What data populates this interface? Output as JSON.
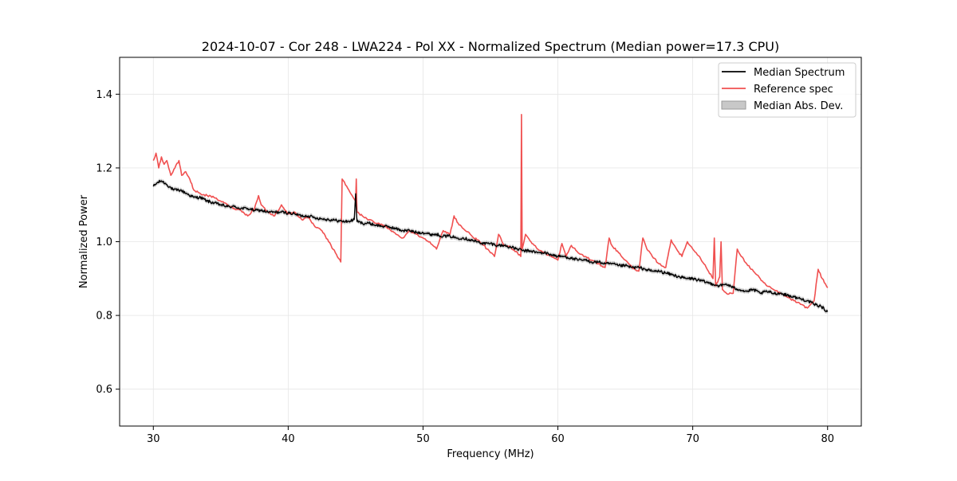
{
  "chart_data": {
    "type": "line",
    "title": "2024-10-07 - Cor 248 - LWA224 - Pol XX - Normalized Spectrum (Median power=17.3 CPU)",
    "xlabel": "Frequency (MHz)",
    "ylabel": "Normalized Power",
    "xlim": [
      27.5,
      82.5
    ],
    "ylim": [
      0.5,
      1.5
    ],
    "xticks": [
      30,
      40,
      50,
      60,
      70,
      80
    ],
    "xtick_labels": [
      "30",
      "40",
      "50",
      "60",
      "70",
      "80"
    ],
    "yticks": [
      0.6,
      0.8,
      1.0,
      1.2,
      1.4
    ],
    "ytick_labels": [
      "0.6",
      "0.8",
      "1.0",
      "1.2",
      "1.4"
    ],
    "grid": true,
    "legend_position": "top-right",
    "series": [
      {
        "name": "Median Spectrum",
        "color": "#000000",
        "x": [
          30.0,
          30.3,
          30.6,
          31.0,
          31.5,
          32.0,
          32.5,
          33.0,
          33.5,
          34.0,
          34.5,
          35.0,
          35.5,
          36.0,
          36.5,
          37.0,
          37.5,
          38.0,
          38.5,
          39.0,
          39.5,
          40.0,
          40.5,
          41.0,
          41.5,
          42.0,
          42.5,
          43.0,
          43.5,
          44.0,
          44.5,
          44.9,
          45.0,
          45.1,
          45.5,
          46.0,
          46.5,
          47.0,
          47.5,
          48.0,
          48.5,
          49.0,
          49.5,
          50.0,
          50.5,
          51.0,
          51.5,
          52.0,
          52.5,
          53.0,
          53.5,
          54.0,
          54.5,
          55.0,
          55.5,
          56.0,
          56.5,
          57.0,
          57.5,
          58.0,
          58.5,
          59.0,
          59.5,
          60.0,
          60.5,
          61.0,
          61.5,
          62.0,
          62.5,
          63.0,
          63.5,
          64.0,
          64.5,
          65.0,
          65.5,
          66.0,
          66.5,
          67.0,
          67.5,
          68.0,
          68.5,
          69.0,
          69.5,
          70.0,
          70.5,
          71.0,
          71.5,
          72.0,
          72.5,
          73.0,
          73.5,
          74.0,
          74.5,
          75.0,
          75.5,
          76.0,
          76.5,
          77.0,
          77.5,
          78.0,
          78.5,
          79.0,
          79.5,
          80.0
        ],
        "values": [
          1.15,
          1.16,
          1.165,
          1.155,
          1.14,
          1.14,
          1.13,
          1.12,
          1.12,
          1.11,
          1.105,
          1.1,
          1.095,
          1.095,
          1.09,
          1.09,
          1.085,
          1.085,
          1.08,
          1.08,
          1.08,
          1.078,
          1.075,
          1.07,
          1.07,
          1.065,
          1.062,
          1.06,
          1.058,
          1.055,
          1.055,
          1.06,
          1.13,
          1.055,
          1.05,
          1.05,
          1.045,
          1.042,
          1.04,
          1.035,
          1.03,
          1.03,
          1.025,
          1.025,
          1.02,
          1.02,
          1.015,
          1.015,
          1.01,
          1.01,
          1.005,
          1.0,
          0.995,
          0.995,
          0.99,
          0.99,
          0.985,
          0.98,
          0.975,
          0.975,
          0.97,
          0.97,
          0.965,
          0.96,
          0.96,
          0.955,
          0.95,
          0.95,
          0.945,
          0.945,
          0.94,
          0.94,
          0.935,
          0.935,
          0.93,
          0.93,
          0.925,
          0.92,
          0.92,
          0.915,
          0.91,
          0.905,
          0.9,
          0.9,
          0.895,
          0.89,
          0.885,
          0.88,
          0.885,
          0.875,
          0.87,
          0.865,
          0.87,
          0.86,
          0.865,
          0.86,
          0.86,
          0.855,
          0.85,
          0.845,
          0.84,
          0.83,
          0.825,
          0.81
        ]
      },
      {
        "name": "Reference spec",
        "color": "#f05050",
        "x": [
          30.0,
          30.2,
          30.4,
          30.6,
          30.8,
          31.0,
          31.3,
          31.6,
          31.9,
          32.1,
          32.4,
          32.7,
          33.0,
          33.5,
          34.0,
          34.5,
          35.0,
          35.5,
          36.0,
          36.5,
          37.0,
          37.5,
          37.8,
          38.0,
          38.5,
          39.0,
          39.5,
          40.0,
          40.5,
          41.0,
          41.5,
          42.0,
          42.5,
          43.0,
          43.5,
          43.9,
          44.0,
          44.5,
          45.0,
          45.05,
          45.1,
          45.5,
          46.0,
          46.5,
          47.0,
          47.5,
          48.0,
          48.5,
          49.0,
          49.5,
          50.0,
          50.5,
          51.0,
          51.5,
          52.0,
          52.3,
          52.6,
          53.0,
          53.5,
          54.0,
          54.5,
          55.0,
          55.3,
          55.6,
          56.0,
          56.5,
          57.0,
          57.25,
          57.3,
          57.35,
          57.6,
          58.0,
          58.5,
          59.0,
          59.5,
          60.0,
          60.3,
          60.6,
          61.0,
          61.5,
          62.0,
          62.5,
          63.0,
          63.5,
          63.8,
          64.0,
          64.5,
          65.0,
          65.5,
          66.0,
          66.3,
          66.6,
          67.0,
          67.5,
          68.0,
          68.4,
          68.8,
          69.2,
          69.6,
          70.0,
          70.5,
          71.0,
          71.5,
          71.6,
          71.7,
          72.0,
          72.1,
          72.2,
          72.5,
          73.0,
          73.3,
          73.6,
          74.0,
          74.5,
          75.0,
          75.5,
          76.0,
          76.5,
          77.0,
          77.5,
          78.0,
          78.5,
          79.0,
          79.3,
          79.6,
          80.0
        ],
        "values": [
          1.22,
          1.24,
          1.2,
          1.23,
          1.21,
          1.22,
          1.18,
          1.2,
          1.22,
          1.18,
          1.19,
          1.17,
          1.14,
          1.13,
          1.125,
          1.12,
          1.11,
          1.1,
          1.09,
          1.085,
          1.07,
          1.09,
          1.125,
          1.1,
          1.08,
          1.07,
          1.1,
          1.075,
          1.08,
          1.06,
          1.065,
          1.04,
          1.03,
          1.0,
          0.97,
          0.945,
          1.17,
          1.14,
          1.11,
          1.17,
          1.08,
          1.07,
          1.06,
          1.05,
          1.045,
          1.035,
          1.02,
          1.01,
          1.03,
          1.02,
          1.01,
          1.0,
          0.98,
          1.03,
          1.02,
          1.07,
          1.05,
          1.035,
          1.02,
          1.005,
          0.99,
          0.97,
          0.96,
          1.02,
          0.99,
          0.985,
          0.97,
          0.96,
          1.345,
          0.98,
          1.02,
          1.0,
          0.98,
          0.97,
          0.96,
          0.95,
          0.995,
          0.96,
          0.99,
          0.97,
          0.96,
          0.95,
          0.94,
          0.93,
          1.01,
          0.99,
          0.97,
          0.95,
          0.93,
          0.92,
          1.01,
          0.98,
          0.96,
          0.94,
          0.93,
          1.005,
          0.98,
          0.96,
          1.0,
          0.98,
          0.96,
          0.93,
          0.9,
          1.01,
          0.88,
          0.905,
          1.0,
          0.87,
          0.86,
          0.86,
          0.98,
          0.96,
          0.94,
          0.92,
          0.9,
          0.88,
          0.87,
          0.86,
          0.85,
          0.84,
          0.83,
          0.82,
          0.84,
          0.925,
          0.9,
          0.875
        ]
      }
    ],
    "band": {
      "name": "Median Abs. Dev.",
      "color": "#c0c0c0",
      "half_width": 0.006
    }
  }
}
